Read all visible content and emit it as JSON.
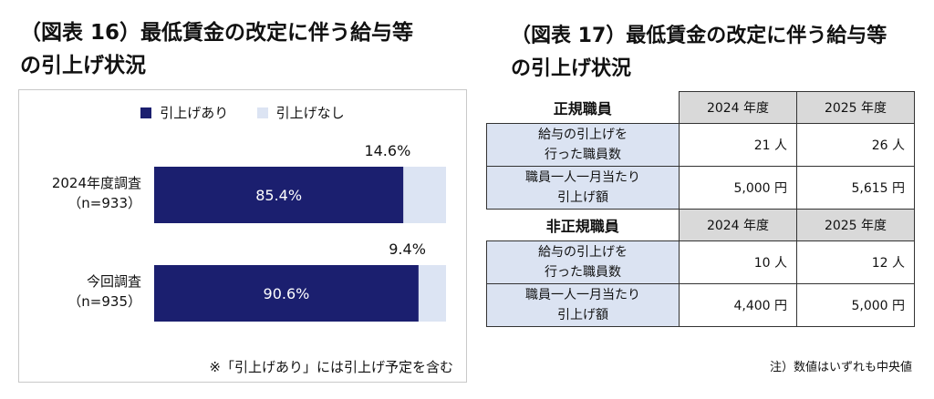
{
  "fig16": {
    "title_line1": "（図表 16）最低賃金の改定に伴う給与等",
    "title_line2": "の引上げ状況",
    "note": "※「引上げあり」には引上げ予定を含む"
  },
  "chart_data": {
    "type": "bar",
    "orientation": "horizontal",
    "stacked": true,
    "percent": true,
    "categories": [
      "2024年度調査\n（n=933）",
      "今回調査\n（n=935）"
    ],
    "series": [
      {
        "name": "引上げあり",
        "values": [
          85.4,
          90.6
        ],
        "color": "#1b1f6f",
        "labels": [
          "85.4%",
          "90.6%"
        ]
      },
      {
        "name": "引上げなし",
        "values": [
          14.6,
          9.4
        ],
        "color": "#dce4f3",
        "labels": [
          "14.6%",
          "9.4%"
        ]
      }
    ],
    "xlim": [
      0,
      100
    ],
    "legend": "top-center",
    "grid": false
  },
  "fig17": {
    "title_line1": "（図表 17）最低賃金の改定に伴う給与等",
    "title_line2": "の引上げ状況",
    "groups": [
      {
        "name": "正規職員",
        "years": [
          "2024 年度",
          "2025 年度"
        ],
        "rows": [
          {
            "label_line1": "給与の引上げを",
            "label_line2": "行った職員数",
            "v1": "21 人",
            "v2": "26 人"
          },
          {
            "label_line1": "職員一人一月当たり",
            "label_line2": "引上げ額",
            "v1": "5,000 円",
            "v2": "5,615 円"
          }
        ]
      },
      {
        "name": "非正規職員",
        "years": [
          "2024 年度",
          "2025 年度"
        ],
        "rows": [
          {
            "label_line1": "給与の引上げを",
            "label_line2": "行った職員数",
            "v1": "10 人",
            "v2": "12 人"
          },
          {
            "label_line1": "職員一人一月当たり",
            "label_line2": "引上げ額",
            "v1": "4,400 円",
            "v2": "5,000 円"
          }
        ]
      }
    ],
    "note": "注）数値はいずれも中央値"
  }
}
